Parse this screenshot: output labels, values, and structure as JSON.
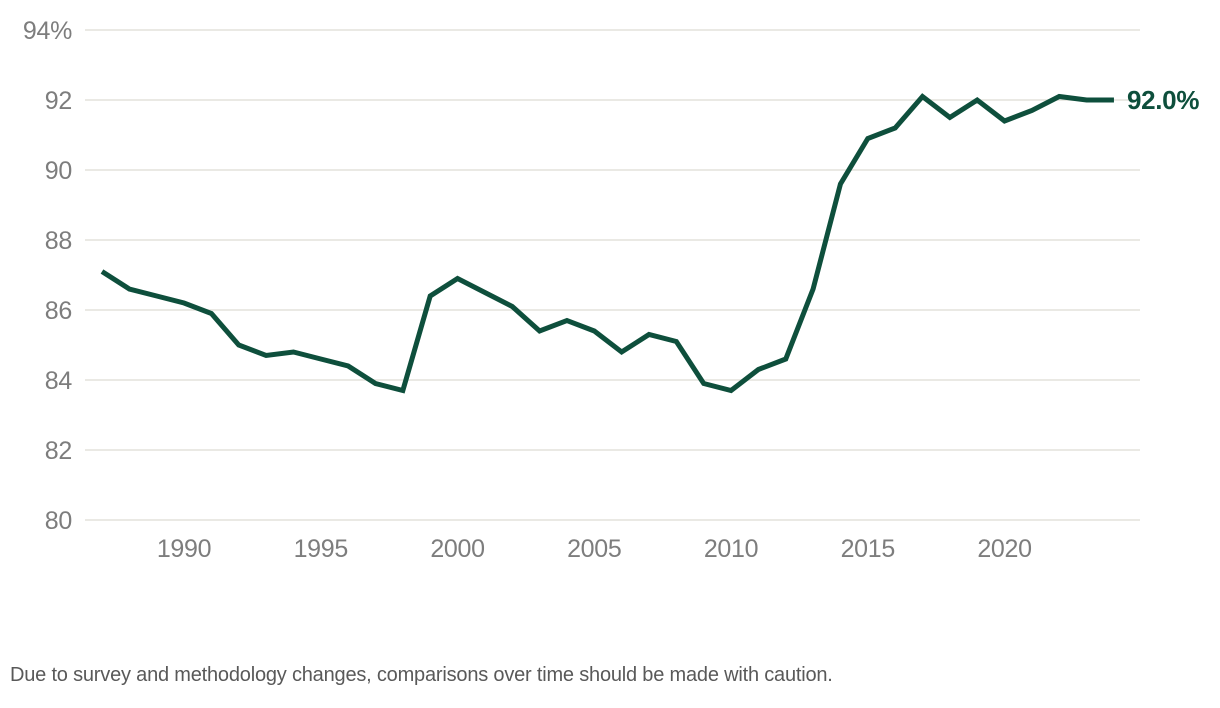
{
  "colors": {
    "line": "#0e4f3c",
    "end_label": "#0e4f3c",
    "tick_label": "#7d7d7d",
    "gridline": "#e4e2db",
    "caption": "#595959",
    "background": "#ffffff"
  },
  "caption": "Due to survey and methodology changes, comparisons over time should be made with caution.",
  "chart_data": {
    "type": "line",
    "x": [
      1987,
      1988,
      1989,
      1990,
      1991,
      1992,
      1993,
      1994,
      1995,
      1996,
      1997,
      1998,
      1999,
      2000,
      2001,
      2002,
      2003,
      2004,
      2005,
      2006,
      2007,
      2008,
      2009,
      2010,
      2011,
      2012,
      2013,
      2014,
      2015,
      2016,
      2017,
      2018,
      2019,
      2020,
      2021,
      2022,
      2023,
      2024
    ],
    "values": [
      87.1,
      86.6,
      86.4,
      86.2,
      85.9,
      85.0,
      84.7,
      84.8,
      84.6,
      84.4,
      83.9,
      83.7,
      86.4,
      86.9,
      86.5,
      86.1,
      85.4,
      85.7,
      85.4,
      84.8,
      85.3,
      85.1,
      83.9,
      83.7,
      84.3,
      84.6,
      86.6,
      89.6,
      90.9,
      91.2,
      92.1,
      91.5,
      92.0,
      91.4,
      91.7,
      92.1,
      92.0,
      92.0
    ],
    "end_label": "92.0%",
    "title": "",
    "xlabel": "",
    "ylabel": "",
    "ylim": [
      80,
      94
    ],
    "xlim": [
      1987,
      2024
    ],
    "grid": "horizontal",
    "legend": "none",
    "yticks": [
      {
        "value": 94,
        "label": "94%"
      },
      {
        "value": 92,
        "label": "92"
      },
      {
        "value": 90,
        "label": "90"
      },
      {
        "value": 88,
        "label": "88"
      },
      {
        "value": 86,
        "label": "86"
      },
      {
        "value": 84,
        "label": "84"
      },
      {
        "value": 82,
        "label": "82"
      },
      {
        "value": 80,
        "label": "80"
      }
    ],
    "xticks": [
      {
        "value": 1990,
        "label": "1990"
      },
      {
        "value": 1995,
        "label": "1995"
      },
      {
        "value": 2000,
        "label": "2000"
      },
      {
        "value": 2005,
        "label": "2005"
      },
      {
        "value": 2010,
        "label": "2010"
      },
      {
        "value": 2015,
        "label": "2015"
      },
      {
        "value": 2020,
        "label": "2020"
      }
    ]
  }
}
